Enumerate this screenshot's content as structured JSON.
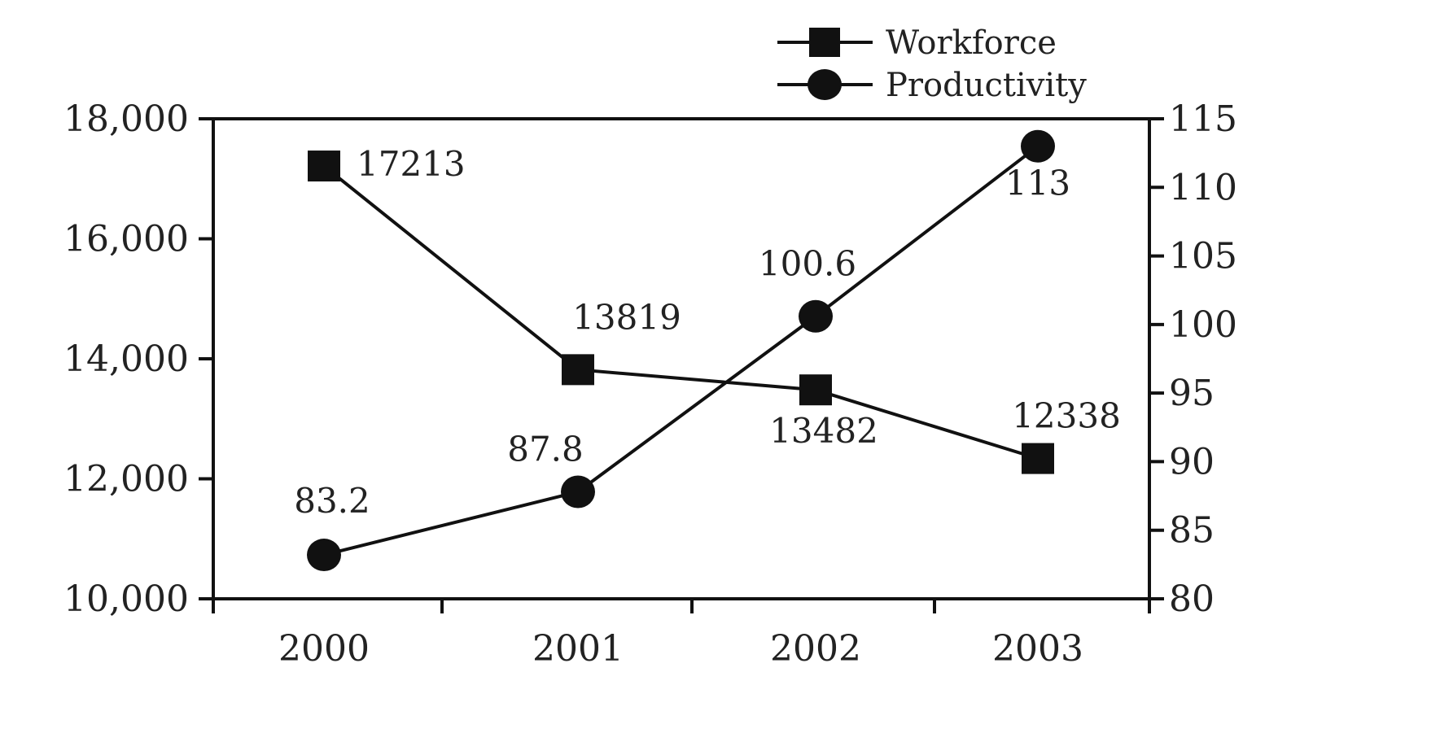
{
  "chart_data": {
    "type": "line",
    "title": "",
    "xlabel": "",
    "ylabel": "",
    "y2label": "",
    "categories": [
      "2000",
      "2001",
      "2002",
      "2003"
    ],
    "ylim": [
      10000,
      18000
    ],
    "y2lim": [
      80,
      115
    ],
    "yticks": [
      "10,000",
      "12,000",
      "14,000",
      "16,000",
      "18,000"
    ],
    "y2ticks": [
      "80",
      "85",
      "90",
      "95",
      "100",
      "105",
      "110",
      "115"
    ],
    "grid": false,
    "legend_position": "top-right",
    "series": [
      {
        "name": "Workforce",
        "axis": "left",
        "marker": "square",
        "color": "#111111",
        "values": [
          17213,
          13819,
          13482,
          12338
        ],
        "labels": [
          "17213",
          "13819",
          "13482",
          "12338"
        ]
      },
      {
        "name": "Productivity",
        "axis": "right",
        "marker": "circle",
        "color": "#111111",
        "values": [
          83.2,
          87.8,
          100.6,
          113
        ],
        "labels": [
          "83.2",
          "87.8",
          "100.6",
          "113"
        ]
      }
    ]
  }
}
